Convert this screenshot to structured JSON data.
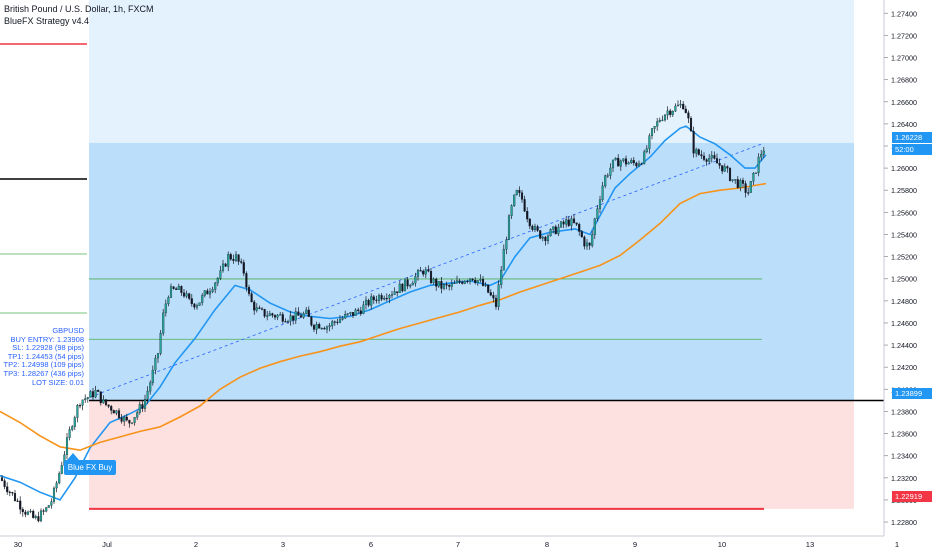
{
  "header": {
    "symbol_line": "British Pound / U.S. Dollar, 1h, FXCM",
    "indicator_line": "BlueFX Strategy v4.4"
  },
  "info_box": {
    "lines": [
      "GBPUSD",
      "BUY ENTRY: 1.23908",
      "SL: 1.22928 (98 pips)",
      "TP1: 1.24453 (54 pips)",
      "TP2: 1.24998 (109 pips)",
      "TP3: 1.28267 (436 pips)",
      "LOT SIZE: 0.01"
    ]
  },
  "signal": {
    "label": "Blue FX Buy"
  },
  "price_tags": {
    "last": "1.26228",
    "countdown": "52:00",
    "entry": "1.23899",
    "stop": "1.22919"
  },
  "colors": {
    "up": "#26a69a",
    "down": "#131722",
    "ema_fast": "#2196f3",
    "ema_slow": "#f7931a",
    "stop_line": "#f23645",
    "entry_line": "#000000",
    "tp_line": "#4caf50",
    "profit_zone": "#bbdefb",
    "profit_zone_light": "#e3f2fd",
    "loss_zone": "#fde0e0",
    "tag_blue": "#2196f3",
    "tag_red": "#f23645"
  },
  "chart_data": {
    "type": "candlestick",
    "title": "British Pound / U.S. Dollar, 1h, FXCM",
    "ylim": [
      1.2271,
      1.2752
    ],
    "y_ticks": [
      "1.22800",
      "1.23000",
      "1.23200",
      "1.23400",
      "1.23600",
      "1.23800",
      "1.24000",
      "1.24200",
      "1.24400",
      "1.24600",
      "1.24800",
      "1.25000",
      "1.25200",
      "1.25400",
      "1.25600",
      "1.25800",
      "1.26000",
      "1.26200",
      "1.26400",
      "1.26600",
      "1.26800",
      "1.27000",
      "1.27200",
      "1.27400"
    ],
    "x_ticks": [
      "30",
      "Jul",
      "2",
      "3",
      "6",
      "7",
      "8",
      "9",
      "10",
      "13",
      "1"
    ],
    "levels": {
      "entry": 1.23899,
      "stop": 1.22919,
      "tp1": 1.24453,
      "tp2": 1.24998,
      "tp_zone_top": 1.26228
    },
    "close_anchors": [
      [
        0,
        1.232
      ],
      [
        12,
        1.2305
      ],
      [
        25,
        1.229
      ],
      [
        35,
        1.2282
      ],
      [
        45,
        1.229
      ],
      [
        52,
        1.23
      ],
      [
        58,
        1.232
      ],
      [
        65,
        1.2345
      ],
      [
        72,
        1.237
      ],
      [
        80,
        1.239
      ],
      [
        88,
        1.2393
      ],
      [
        96,
        1.2398
      ],
      [
        104,
        1.2387
      ],
      [
        112,
        1.2383
      ],
      [
        120,
        1.2377
      ],
      [
        128,
        1.2369
      ],
      [
        136,
        1.2378
      ],
      [
        144,
        1.2388
      ],
      [
        152,
        1.2412
      ],
      [
        158,
        1.2433
      ],
      [
        163,
        1.2466
      ],
      [
        168,
        1.2487
      ],
      [
        175,
        1.249
      ],
      [
        183,
        1.2488
      ],
      [
        190,
        1.2478
      ],
      [
        198,
        1.2478
      ],
      [
        206,
        1.2487
      ],
      [
        213,
        1.2495
      ],
      [
        220,
        1.2503
      ],
      [
        228,
        1.252
      ],
      [
        236,
        1.2519
      ],
      [
        244,
        1.2506
      ],
      [
        250,
        1.248
      ],
      [
        258,
        1.247
      ],
      [
        266,
        1.2468
      ],
      [
        274,
        1.2467
      ],
      [
        282,
        1.2466
      ],
      [
        290,
        1.2465
      ],
      [
        298,
        1.2466
      ],
      [
        306,
        1.2468
      ],
      [
        313,
        1.2458
      ],
      [
        320,
        1.2459
      ],
      [
        328,
        1.2457
      ],
      [
        336,
        1.2462
      ],
      [
        344,
        1.2465
      ],
      [
        352,
        1.2468
      ],
      [
        360,
        1.2472
      ],
      [
        368,
        1.2478
      ],
      [
        376,
        1.2483
      ],
      [
        384,
        1.2486
      ],
      [
        392,
        1.2488
      ],
      [
        400,
        1.2492
      ],
      [
        408,
        1.2496
      ],
      [
        416,
        1.2502
      ],
      [
        424,
        1.2508
      ],
      [
        432,
        1.2498
      ],
      [
        440,
        1.2493
      ],
      [
        448,
        1.2492
      ],
      [
        456,
        1.2495
      ],
      [
        464,
        1.25
      ],
      [
        472,
        1.2502
      ],
      [
        480,
        1.2497
      ],
      [
        488,
        1.2488
      ],
      [
        496,
        1.2476
      ],
      [
        504,
        1.2526
      ],
      [
        510,
        1.2558
      ],
      [
        516,
        1.2578
      ],
      [
        522,
        1.2572
      ],
      [
        528,
        1.2555
      ],
      [
        536,
        1.2542
      ],
      [
        544,
        1.2538
      ],
      [
        552,
        1.2542
      ],
      [
        560,
        1.2547
      ],
      [
        568,
        1.2552
      ],
      [
        576,
        1.2548
      ],
      [
        584,
        1.2533
      ],
      [
        590,
        1.2528
      ],
      [
        596,
        1.256
      ],
      [
        604,
        1.259
      ],
      [
        612,
        1.2603
      ],
      [
        620,
        1.2607
      ],
      [
        628,
        1.2605
      ],
      [
        636,
        1.2604
      ],
      [
        644,
        1.261
      ],
      [
        652,
        1.2632
      ],
      [
        660,
        1.2645
      ],
      [
        668,
        1.2652
      ],
      [
        676,
        1.2655
      ],
      [
        684,
        1.2658
      ],
      [
        688,
        1.2645
      ],
      [
        694,
        1.2615
      ],
      [
        700,
        1.2612
      ],
      [
        708,
        1.261
      ],
      [
        716,
        1.2605
      ],
      [
        724,
        1.26
      ],
      [
        732,
        1.259
      ],
      [
        740,
        1.2585
      ],
      [
        748,
        1.2578
      ],
      [
        754,
        1.2593
      ],
      [
        760,
        1.2612
      ],
      [
        766,
        1.2621
      ]
    ],
    "series": [
      {
        "name": "EMA fast",
        "color": "#2196f3",
        "points": [
          [
            0,
            1.2322
          ],
          [
            20,
            1.2316
          ],
          [
            40,
            1.2307
          ],
          [
            60,
            1.23
          ],
          [
            75,
            1.232
          ],
          [
            90,
            1.2347
          ],
          [
            110,
            1.237
          ],
          [
            130,
            1.2378
          ],
          [
            145,
            1.2385
          ],
          [
            160,
            1.2402
          ],
          [
            175,
            1.2424
          ],
          [
            195,
            1.2446
          ],
          [
            215,
            1.2472
          ],
          [
            235,
            1.2494
          ],
          [
            250,
            1.249
          ],
          [
            270,
            1.2478
          ],
          [
            290,
            1.247
          ],
          [
            310,
            1.2466
          ],
          [
            330,
            1.2464
          ],
          [
            350,
            1.2466
          ],
          [
            370,
            1.2472
          ],
          [
            390,
            1.248
          ],
          [
            410,
            1.2488
          ],
          [
            430,
            1.2494
          ],
          [
            450,
            1.2496
          ],
          [
            470,
            1.2498
          ],
          [
            490,
            1.2494
          ],
          [
            500,
            1.2498
          ],
          [
            515,
            1.252
          ],
          [
            530,
            1.2537
          ],
          [
            550,
            1.2542
          ],
          [
            575,
            1.2545
          ],
          [
            590,
            1.254
          ],
          [
            600,
            1.2557
          ],
          [
            615,
            1.2582
          ],
          [
            630,
            1.2595
          ],
          [
            650,
            1.261
          ],
          [
            665,
            1.2625
          ],
          [
            680,
            1.2636
          ],
          [
            686,
            1.2638
          ],
          [
            700,
            1.2628
          ],
          [
            715,
            1.2622
          ],
          [
            730,
            1.2612
          ],
          [
            745,
            1.26
          ],
          [
            755,
            1.26
          ],
          [
            766,
            1.2612
          ]
        ]
      },
      {
        "name": "EMA slow",
        "color": "#f7931a",
        "points": [
          [
            0,
            1.238
          ],
          [
            20,
            1.237
          ],
          [
            40,
            1.2358
          ],
          [
            60,
            1.2348
          ],
          [
            80,
            1.2345
          ],
          [
            100,
            1.2352
          ],
          [
            120,
            1.2357
          ],
          [
            140,
            1.2362
          ],
          [
            160,
            1.2366
          ],
          [
            180,
            1.2375
          ],
          [
            200,
            1.2385
          ],
          [
            220,
            1.24
          ],
          [
            240,
            1.2411
          ],
          [
            260,
            1.2419
          ],
          [
            280,
            1.2425
          ],
          [
            300,
            1.243
          ],
          [
            320,
            1.2434
          ],
          [
            340,
            1.2439
          ],
          [
            360,
            1.2443
          ],
          [
            380,
            1.2449
          ],
          [
            400,
            1.2455
          ],
          [
            420,
            1.246
          ],
          [
            440,
            1.2465
          ],
          [
            460,
            1.247
          ],
          [
            480,
            1.2476
          ],
          [
            500,
            1.2481
          ],
          [
            520,
            1.2488
          ],
          [
            540,
            1.2494
          ],
          [
            560,
            1.25
          ],
          [
            580,
            1.2506
          ],
          [
            600,
            1.2512
          ],
          [
            620,
            1.2521
          ],
          [
            640,
            1.2535
          ],
          [
            660,
            1.255
          ],
          [
            680,
            1.2568
          ],
          [
            700,
            1.2577
          ],
          [
            720,
            1.258
          ],
          [
            740,
            1.2582
          ],
          [
            766,
            1.2586
          ]
        ]
      }
    ],
    "trend_line": [
      [
        90,
        1.2393
      ],
      [
        762,
        1.2622
      ]
    ]
  }
}
